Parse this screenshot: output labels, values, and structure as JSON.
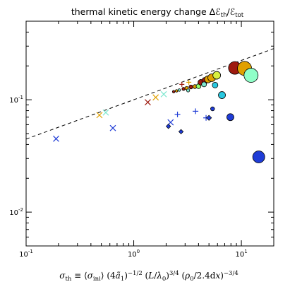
{
  "chart_data": {
    "type": "scatter",
    "title": "thermal kinetic energy change ΔℰY_th/ℰY_tot",
    "title_plain": "thermal kinetic energy change Δℰth/ℰtot",
    "xlabel": "σth ≡ ⟨σini⟩ (4ã1)^−1/2 (L/λ0)^3/4 (ρ0/2.4dx)^−3/4",
    "xscale": "log",
    "yscale": "log",
    "xlim": [
      0.1,
      20
    ],
    "ylim": [
      0.005,
      0.5
    ],
    "x_tick_labels": [
      {
        "value": 0.1,
        "base": "10",
        "exp": "-1"
      },
      {
        "value": 1,
        "base": "10",
        "exp": "0"
      },
      {
        "value": 10,
        "base": "10",
        "exp": "1"
      }
    ],
    "y_tick_labels": [
      {
        "value": 0.01,
        "base": "10",
        "exp": "-2"
      },
      {
        "value": 0.1,
        "base": "10",
        "exp": "-1"
      }
    ],
    "grid": false,
    "fit_line": {
      "style": "dashed",
      "color": "#000000",
      "slope": 0.35,
      "x_ref": 1,
      "y_ref": 0.1
    },
    "points": [
      {
        "x": 0.19,
        "y": 0.045,
        "marker": "x",
        "color": "#1f3cd6",
        "size": 8
      },
      {
        "x": 0.48,
        "y": 0.073,
        "marker": "x",
        "color": "#e0a000",
        "size": 8
      },
      {
        "x": 0.55,
        "y": 0.077,
        "marker": "x",
        "color": "#7fe8d0",
        "size": 8
      },
      {
        "x": 0.64,
        "y": 0.056,
        "marker": "x",
        "color": "#1f3cd6",
        "size": 8
      },
      {
        "x": 1.35,
        "y": 0.095,
        "marker": "x",
        "color": "#9e1a0f",
        "size": 8
      },
      {
        "x": 1.6,
        "y": 0.105,
        "marker": "x",
        "color": "#e0a000",
        "size": 8
      },
      {
        "x": 1.9,
        "y": 0.112,
        "marker": "x",
        "color": "#7fe8d0",
        "size": 8
      },
      {
        "x": 2.2,
        "y": 0.063,
        "marker": "x",
        "color": "#1f3cd6",
        "size": 8
      },
      {
        "x": 2.55,
        "y": 0.074,
        "marker": "+",
        "color": "#1f3cd6",
        "size": 8
      },
      {
        "x": 2.8,
        "y": 0.137,
        "marker": "+",
        "color": "#9e1a0f",
        "size": 7
      },
      {
        "x": 3.25,
        "y": 0.143,
        "marker": "+",
        "color": "#e0a000",
        "size": 7
      },
      {
        "x": 3.75,
        "y": 0.079,
        "marker": "+",
        "color": "#1f3cd6",
        "size": 8
      },
      {
        "x": 4.4,
        "y": 0.15,
        "marker": "+",
        "color": "#7fe8d0",
        "size": 7
      },
      {
        "x": 4.7,
        "y": 0.069,
        "marker": "+",
        "color": "#1f3cd6",
        "size": 8
      },
      {
        "x": 2.1,
        "y": 0.058,
        "marker": "diamond",
        "color": "#1f3cd6",
        "size": 3.2
      },
      {
        "x": 2.75,
        "y": 0.052,
        "marker": "diamond",
        "color": "#1f3cd6",
        "size": 3.2
      },
      {
        "x": 5.0,
        "y": 0.069,
        "marker": "diamond",
        "color": "#1f3cd6",
        "size": 3.6
      },
      {
        "x": 2.35,
        "y": 0.118,
        "marker": "circle",
        "color": "#9e1a0f",
        "size": 1.8
      },
      {
        "x": 2.5,
        "y": 0.12,
        "marker": "circle",
        "color": "#e0a000",
        "size": 1.8
      },
      {
        "x": 2.65,
        "y": 0.122,
        "marker": "circle",
        "color": "#7fe8d0",
        "size": 1.8
      },
      {
        "x": 2.9,
        "y": 0.125,
        "marker": "circle",
        "color": "#9e1a0f",
        "size": 2.2
      },
      {
        "x": 3.1,
        "y": 0.127,
        "marker": "circle",
        "color": "#e0a000",
        "size": 2.4
      },
      {
        "x": 3.4,
        "y": 0.13,
        "marker": "circle",
        "color": "#9e1a0f",
        "size": 2.8
      },
      {
        "x": 3.7,
        "y": 0.131,
        "marker": "circle",
        "color": "#e0a000",
        "size": 2.8
      },
      {
        "x": 4.0,
        "y": 0.132,
        "marker": "circle",
        "color": "#90ff70",
        "size": 3.4
      },
      {
        "x": 3.2,
        "y": 0.121,
        "marker": "circle",
        "color": "#7fe8d0",
        "size": 2.2
      },
      {
        "x": 4.2,
        "y": 0.143,
        "marker": "circle",
        "color": "#9e1a0f",
        "size": 4.0
      },
      {
        "x": 4.6,
        "y": 0.148,
        "marker": "circle",
        "color": "#9e1a0f",
        "size": 4.5
      },
      {
        "x": 4.9,
        "y": 0.152,
        "marker": "circle",
        "color": "#e0a000",
        "size": 5.0
      },
      {
        "x": 5.3,
        "y": 0.157,
        "marker": "circle",
        "color": "#e0a000",
        "size": 5.5
      },
      {
        "x": 5.9,
        "y": 0.165,
        "marker": "circle",
        "color": "#d8f040",
        "size": 5.5
      },
      {
        "x": 4.5,
        "y": 0.137,
        "marker": "circle",
        "color": "#7fe8d0",
        "size": 3.5
      },
      {
        "x": 5.7,
        "y": 0.135,
        "marker": "circle",
        "color": "#28c8e0",
        "size": 4.0
      },
      {
        "x": 5.4,
        "y": 0.083,
        "marker": "circle",
        "color": "#1f3cd6",
        "size": 2.8
      },
      {
        "x": 6.6,
        "y": 0.11,
        "marker": "circle",
        "color": "#28c8e0",
        "size": 5.0
      },
      {
        "x": 7.9,
        "y": 0.07,
        "marker": "circle",
        "color": "#1f3cd6",
        "size": 5.0
      },
      {
        "x": 8.7,
        "y": 0.192,
        "marker": "circle",
        "color": "#9e1a0f",
        "size": 9.0
      },
      {
        "x": 10.7,
        "y": 0.19,
        "marker": "circle",
        "color": "#e0a000",
        "size": 10.0
      },
      {
        "x": 12.3,
        "y": 0.165,
        "marker": "circle",
        "color": "#90ffc8",
        "size": 10.0
      },
      {
        "x": 14.5,
        "y": 0.031,
        "marker": "circle",
        "color": "#1f3cd6",
        "size": 8.5
      }
    ]
  }
}
